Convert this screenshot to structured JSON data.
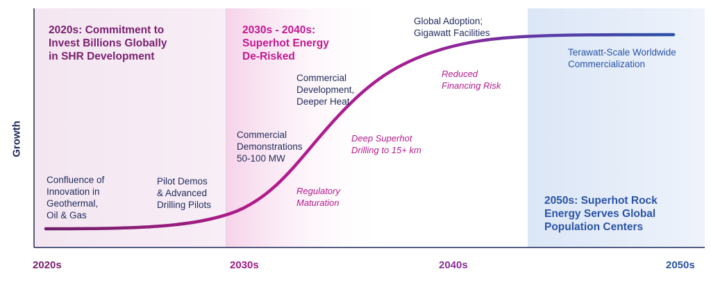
{
  "colors": {
    "purple_dark": "#7a1f6e",
    "magenta": "#c2188f",
    "navy": "#1f2a5a",
    "blue": "#2a53a6"
  },
  "axis": {
    "y_label": "Growth",
    "x_ticks": [
      "2020s",
      "2030s",
      "2040s",
      "2050s"
    ]
  },
  "phases": {
    "phase1_heading": "2020s: Commitment to\nInvest Billions Globally\nin SHR Development",
    "phase2_heading": "2030s - 2040s:\nSuperhot Energy\nDe-Risked",
    "phase3_heading": "2050s: Superhot Rock\nEnergy Serves Global\nPopulation Centers"
  },
  "milestones": {
    "confluence": "Confluence of\nInnovation in\nGeothermal,\nOil & Gas",
    "pilot": "Pilot Demos\n& Advanced\nDrilling Pilots",
    "commercial_demo": "Commercial\nDemonstrations\n50-100 MW",
    "commercial_dev": "Commercial\nDevelopment,\nDeeper Heat",
    "global_adoption": "Global Adoption;\nGigawatt Facilities",
    "terawatt": "Terawatt-Scale Worldwide\nCommercialization"
  },
  "enablers": {
    "regulatory": "Regulatory\nMaturation",
    "deep_drilling": "Deep Superhot\nDrilling to 15+ km",
    "financing": "Reduced\nFinancing Risk"
  }
}
